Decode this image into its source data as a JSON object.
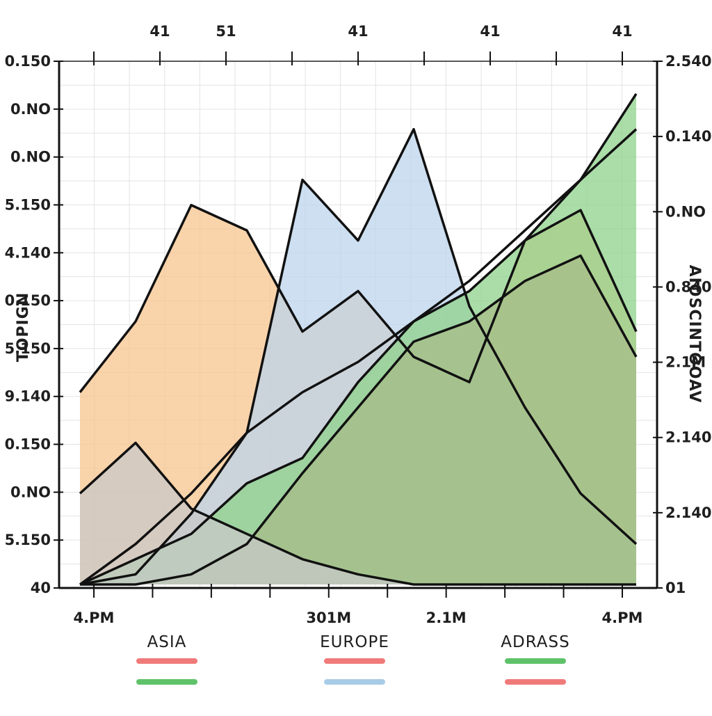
{
  "chart_data": {
    "type": "area",
    "title": "",
    "xlabel": "",
    "ylabel": "TOPIGN",
    "y2label": "AIOSCINTOOAV",
    "x_ticks_bottom": [
      "4.PM",
      "",
      "",
      "",
      "301M",
      "",
      "2.1M",
      "",
      "",
      "4.PM"
    ],
    "x_ticks_top": [
      "",
      "41",
      "51",
      "",
      "41",
      "",
      "41",
      "",
      "41"
    ],
    "y_ticks_left": [
      "0.150",
      "0.NO",
      "0.NO",
      "5.150",
      "4.140",
      "0.150",
      "5.150",
      "9.140",
      "0.150",
      "0.NO",
      "5.150",
      "40"
    ],
    "y_ticks_right": [
      "2.540",
      "0.140",
      "0.NO",
      "0.840",
      "2.1M",
      "2.140",
      "2.140",
      "01"
    ],
    "x": [
      0,
      10,
      20,
      30,
      40,
      50,
      60,
      70,
      80,
      90,
      100
    ],
    "series": [
      {
        "color": "#f7c48e",
        "values": [
          38,
          52,
          75,
          70,
          50,
          58,
          45,
          40,
          68,
          74,
          50
        ]
      },
      {
        "color": "#bcd4eb",
        "values": [
          0,
          2,
          14,
          30,
          80,
          68,
          90,
          55,
          35,
          18,
          8
        ]
      },
      {
        "color": "#f28080",
        "values": [
          0,
          0,
          2,
          8,
          22,
          35,
          48,
          52,
          60,
          65,
          45
        ]
      },
      {
        "color": "#8fd18b",
        "values": [
          0,
          5,
          10,
          20,
          25,
          40,
          52,
          58,
          68,
          80,
          97
        ]
      },
      {
        "color": "#c8c8c8",
        "values": [
          18,
          28,
          15,
          10,
          5,
          2,
          0,
          0,
          0,
          0,
          0
        ]
      }
    ],
    "trend_line": {
      "color": "#111111",
      "values": [
        0,
        8,
        18,
        30,
        38,
        44,
        52,
        60,
        70,
        80,
        90
      ]
    },
    "legend": [
      {
        "label": "ASIA",
        "colors": [
          "#f07a7a",
          "#5fc26a"
        ]
      },
      {
        "label": "EUROPE",
        "colors": [
          "#f07a7a",
          "#a9cce6"
        ]
      },
      {
        "label": "ADRASS",
        "colors": [
          "#5fc26a",
          "#f07a7a"
        ]
      }
    ],
    "grid": true,
    "legend_position": "bottom"
  }
}
